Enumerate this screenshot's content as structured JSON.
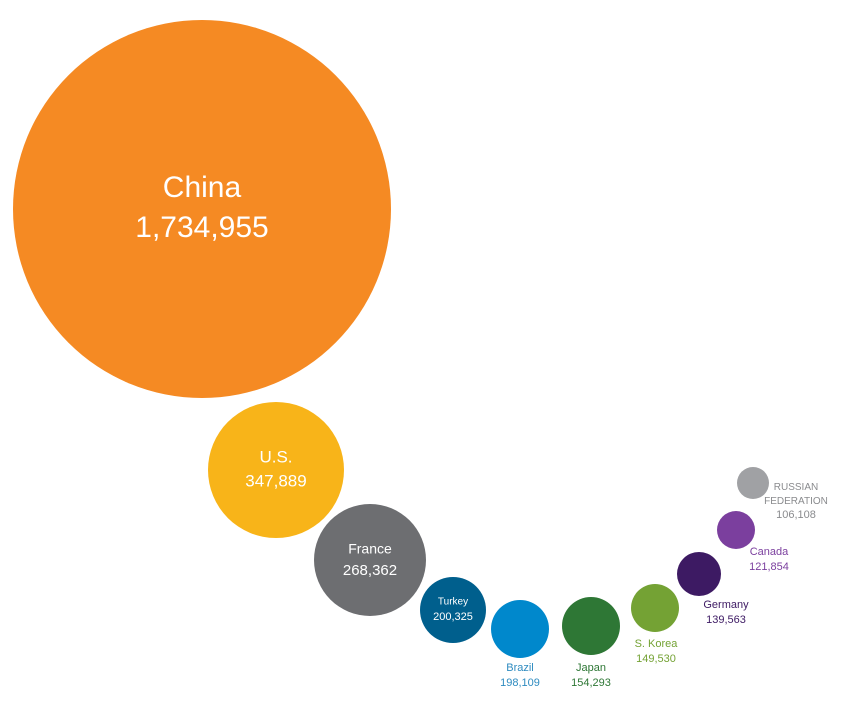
{
  "chart_data": {
    "type": "bubble",
    "title": "",
    "points": [
      {
        "name": "China",
        "value": "1,734,955",
        "numeric": 1734955,
        "color": "#f58a23",
        "label_position": "inside",
        "label_color": "#ffffff"
      },
      {
        "name": "U.S.",
        "value": "347,889",
        "numeric": 347889,
        "color": "#f8b419",
        "label_position": "inside",
        "label_color": "#ffffff"
      },
      {
        "name": "France",
        "value": "268,362",
        "numeric": 268362,
        "color": "#6d6e71",
        "label_position": "inside",
        "label_color": "#ffffff"
      },
      {
        "name": "Turkey",
        "value": "200,325",
        "numeric": 200325,
        "color": "#005f8d",
        "label_position": "inside",
        "label_color": "#ffffff"
      },
      {
        "name": "Brazil",
        "value": "198,109",
        "numeric": 198109,
        "color": "#0088cc",
        "label_position": "below",
        "label_color": "#2e8bc0"
      },
      {
        "name": "Japan",
        "value": "154,293",
        "numeric": 154293,
        "color": "#2e7735",
        "label_position": "below",
        "label_color": "#2e7735"
      },
      {
        "name": "S. Korea",
        "value": "149,530",
        "numeric": 149530,
        "color": "#74a234",
        "label_position": "below",
        "label_color": "#74a234"
      },
      {
        "name": "Germany",
        "value": "139,563",
        "numeric": 139563,
        "color": "#3d1a63",
        "label_position": "below",
        "label_color": "#3d1a63"
      },
      {
        "name": "Canada",
        "value": "121,854",
        "numeric": 121854,
        "color": "#7b3f9e",
        "label_position": "below",
        "label_color": "#7b3f9e"
      },
      {
        "name": "RUSSIAN FEDERATION",
        "value": "106,108",
        "numeric": 106108,
        "color": "#a0a1a4",
        "label_position": "right",
        "label_color": "#8a8b8e"
      }
    ]
  }
}
